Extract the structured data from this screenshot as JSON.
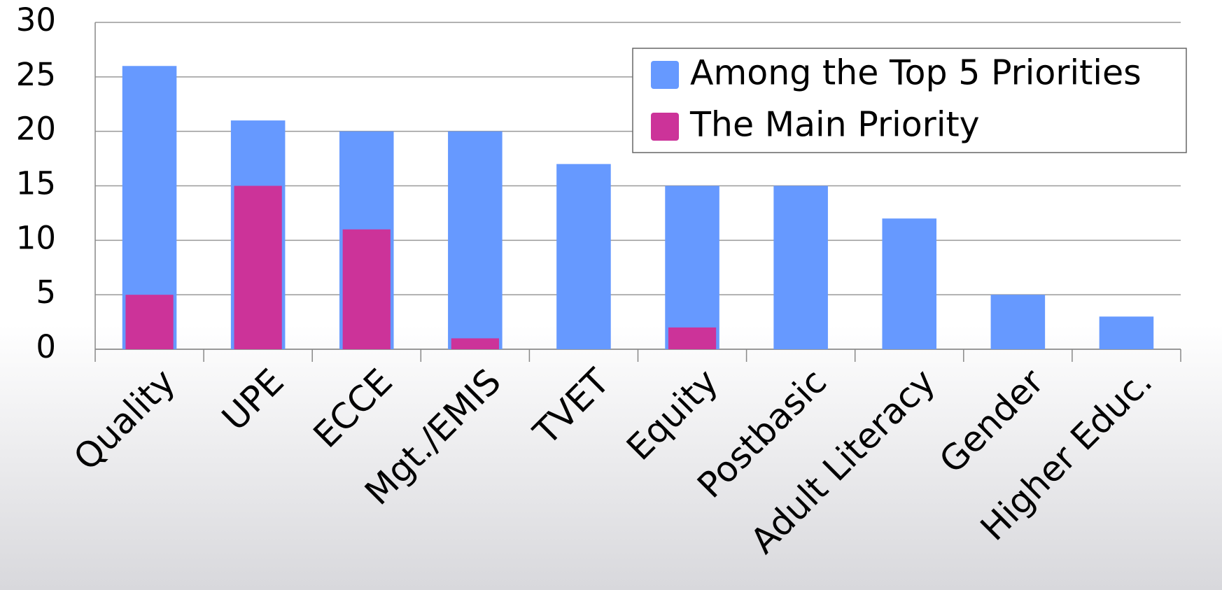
{
  "chart_data": {
    "type": "bar",
    "categories": [
      "Quality",
      "UPE",
      "ECCE",
      "Mgt./EMIS",
      "TVET",
      "Equity",
      "Postbasic",
      "Adult Literacy",
      "Gender",
      "Higher Educ."
    ],
    "series": [
      {
        "name": "Among the Top 5 Priorities",
        "color": "#6699ff",
        "values": [
          26,
          21,
          20,
          20,
          17,
          15,
          15,
          12,
          5,
          3
        ]
      },
      {
        "name": "The Main Priority",
        "color": "#cc3399",
        "values": [
          5,
          15,
          11,
          1,
          0,
          2,
          0,
          0,
          0,
          0
        ]
      }
    ],
    "ylim": [
      0,
      30
    ],
    "yticks": [
      0,
      5,
      10,
      15,
      20,
      25,
      30
    ],
    "grid": true,
    "legend": "top-right"
  }
}
